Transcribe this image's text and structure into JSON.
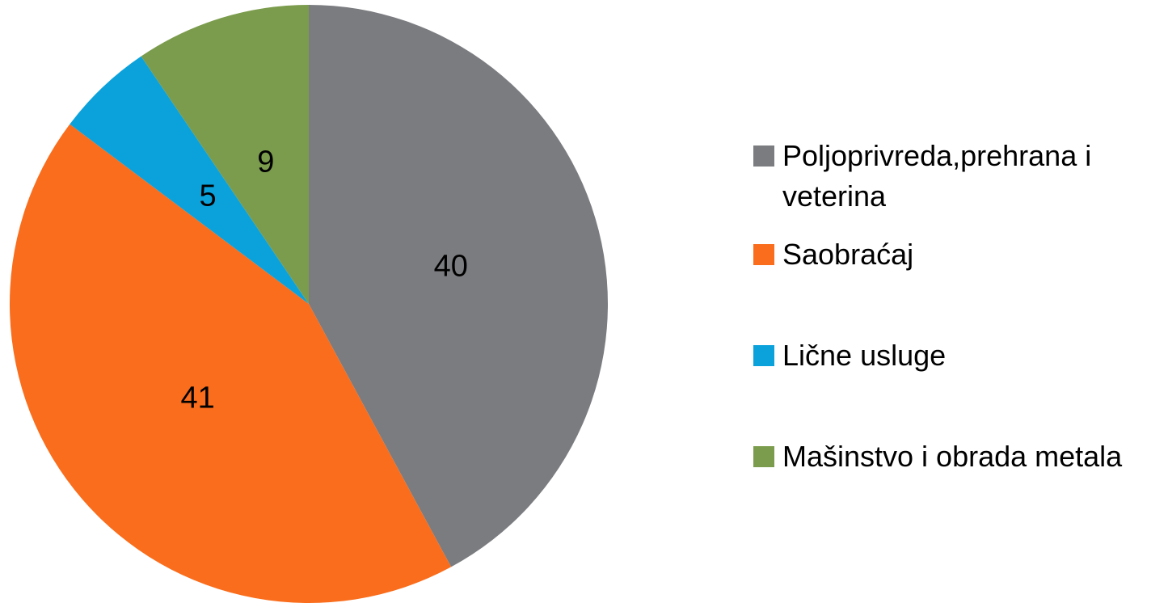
{
  "chart_data": {
    "type": "pie",
    "categories": [
      "Poljoprivreda,prehrana i veterina",
      "Saobraćaj",
      "Lične usluge",
      "Mašinstvo i obrada metala"
    ],
    "values": [
      40,
      41,
      5,
      9
    ],
    "colors": [
      "#7b7c80",
      "#f96d1c",
      "#0ba2dc",
      "#7b9c4c"
    ],
    "legend": "right"
  }
}
